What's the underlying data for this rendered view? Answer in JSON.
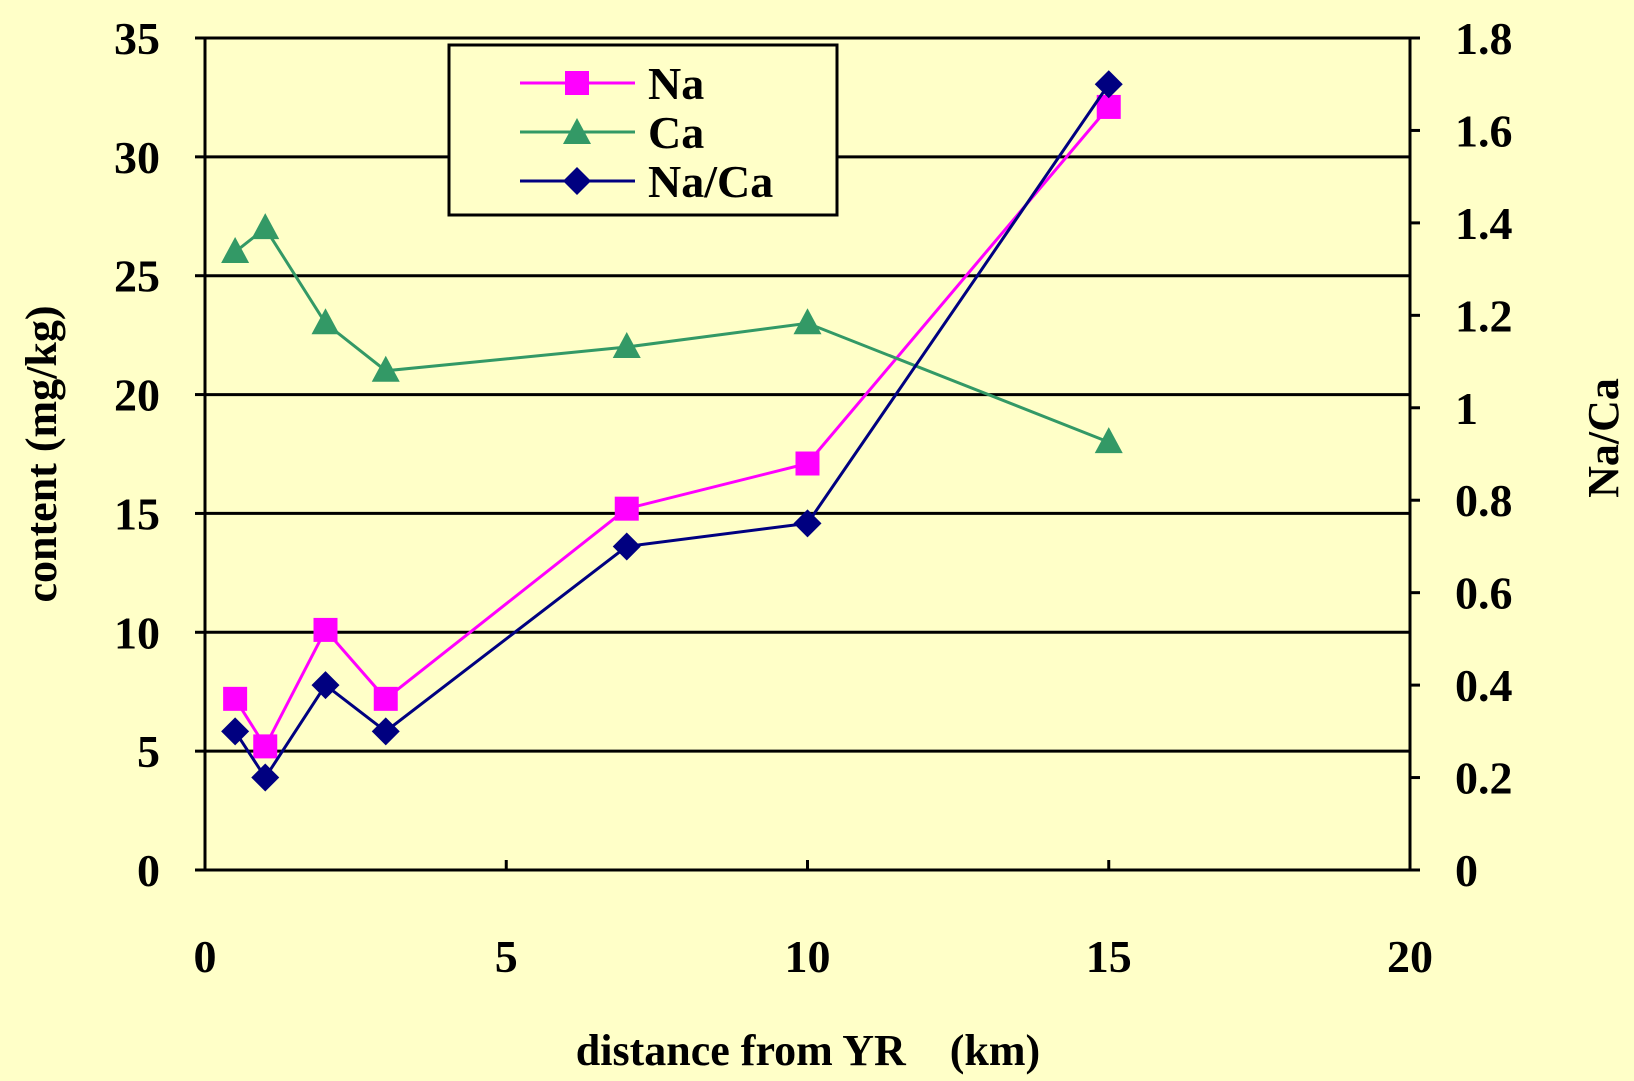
{
  "chart_data": {
    "type": "line",
    "xlabel": "distance from YR　(km)",
    "ylabel": "content (mg/kg)",
    "y2label": "Na/Ca",
    "xlim": [
      0,
      20
    ],
    "ylim": [
      0,
      35
    ],
    "y2lim": [
      0,
      1.8
    ],
    "x_ticks": [
      "0",
      "5",
      "10",
      "15",
      "20"
    ],
    "y_ticks": [
      "0",
      "5",
      "10",
      "15",
      "20",
      "25",
      "30",
      "35"
    ],
    "y2_ticks": [
      "0",
      "0.2",
      "0.4",
      "0.6",
      "0.8",
      "1",
      "1.2",
      "1.4",
      "1.6",
      "1.8"
    ],
    "grid": "horizontal",
    "legend_position": "top-center",
    "series": [
      {
        "name": "Na",
        "axis": "left",
        "color": "#FF00FF",
        "marker": "square",
        "points": [
          [
            0.5,
            7.2
          ],
          [
            1,
            5.2
          ],
          [
            2,
            10.1
          ],
          [
            3,
            7.2
          ],
          [
            7,
            15.2
          ],
          [
            10,
            17.1
          ],
          [
            15,
            32.1
          ]
        ]
      },
      {
        "name": "Ca",
        "axis": "left",
        "color": "#339966",
        "marker": "triangle",
        "points": [
          [
            0.5,
            26
          ],
          [
            1,
            27
          ],
          [
            2,
            23
          ],
          [
            3,
            21
          ],
          [
            7,
            22
          ],
          [
            10,
            23
          ],
          [
            15,
            18
          ]
        ]
      },
      {
        "name": "Na/Ca",
        "axis": "right",
        "color": "#000080",
        "marker": "diamond",
        "points": [
          [
            0.5,
            0.3
          ],
          [
            1,
            0.2
          ],
          [
            2,
            0.4
          ],
          [
            3,
            0.3
          ],
          [
            7,
            0.7
          ],
          [
            10,
            0.75
          ],
          [
            15,
            1.7
          ]
        ]
      }
    ]
  }
}
